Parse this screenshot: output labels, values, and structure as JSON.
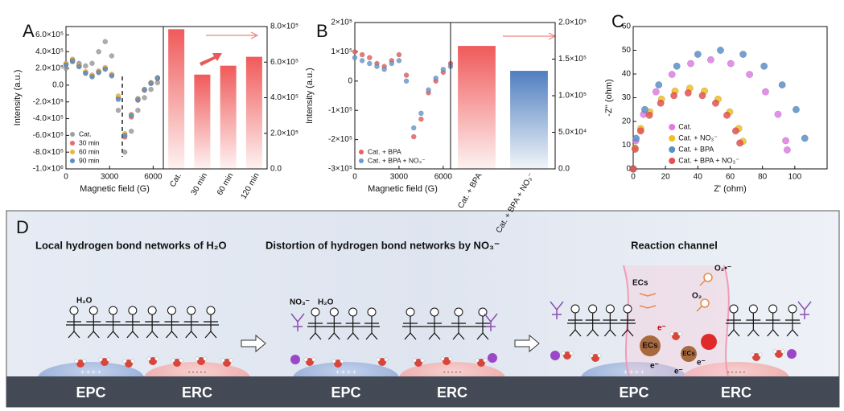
{
  "panel_labels": [
    "A",
    "B",
    "C",
    "D"
  ],
  "chart_data": [
    {
      "type": "scatter",
      "xlabel": "Magnetic field (G)",
      "ylabel": "Intensity (a.u.)",
      "x": [
        0,
        450,
        900,
        1350,
        1800,
        2250,
        2700,
        3150,
        3600,
        4050,
        4500,
        4950,
        5400,
        5850,
        6300
      ],
      "series": [
        {
          "name": "Cat.",
          "color": "#9e9e9e",
          "values": [
            200000,
            280000,
            260000,
            230000,
            260000,
            400000,
            520000,
            350000,
            -300000,
            -800000,
            -550000,
            -300000,
            -150000,
            -50000,
            30000
          ]
        },
        {
          "name": "30 min",
          "color": "#e86a6a",
          "values": [
            250000,
            300000,
            230000,
            150000,
            110000,
            160000,
            200000,
            120000,
            -150000,
            -620000,
            -380000,
            -180000,
            -60000,
            20000,
            80000
          ]
        },
        {
          "name": "60 min",
          "color": "#e8b83a",
          "values": [
            260000,
            310000,
            240000,
            160000,
            120000,
            170000,
            210000,
            130000,
            -130000,
            -580000,
            -350000,
            -160000,
            -50000,
            30000,
            90000
          ]
        },
        {
          "name": "90 min",
          "color": "#5b8ec9",
          "values": [
            240000,
            290000,
            220000,
            140000,
            100000,
            150000,
            190000,
            110000,
            -170000,
            -600000,
            -360000,
            -170000,
            -55000,
            25000,
            85000
          ]
        }
      ],
      "xlim": [
        0,
        6700
      ],
      "xticks": [
        0,
        3000,
        6000
      ],
      "ylim": [
        -1000000,
        700000
      ],
      "yticks": [
        {
          "value": 600000,
          "label": "6.0×10⁵"
        },
        {
          "value": 400000,
          "label": "4.0×10⁵"
        },
        {
          "value": 200000,
          "label": "2.0×10⁵"
        },
        {
          "value": 0,
          "label": "0.0"
        },
        {
          "value": -200000,
          "label": "-2.0×10⁵"
        },
        {
          "value": -400000,
          "label": "-4.0×10⁵"
        },
        {
          "value": -600000,
          "label": "-6.0×10⁵"
        },
        {
          "value": -800000,
          "label": "-8.0×10⁵"
        },
        {
          "value": -1000000,
          "label": "-1.0×10⁶"
        }
      ],
      "legend": "lower left"
    },
    {
      "type": "bar",
      "categories": [
        "Cat.",
        "30 min",
        "60 min",
        "120 min"
      ],
      "values": [
        785000,
        530000,
        580000,
        630000
      ],
      "colors": [
        "#f05a5a",
        "#f05a5a",
        "#f05a5a",
        "#f05a5a"
      ],
      "ylim": [
        0,
        800000
      ],
      "yticks": [
        {
          "value": 0,
          "label": "0.0"
        },
        {
          "value": 200000,
          "label": "2.0×10⁵"
        },
        {
          "value": 400000,
          "label": "4.0×10⁵"
        },
        {
          "value": 600000,
          "label": "6.0×10⁵"
        },
        {
          "value": 800000,
          "label": "8.0×10⁵"
        }
      ],
      "y_axis": "right"
    },
    {
      "type": "scatter",
      "xlabel": "Magnetic field (G)",
      "ylabel": "Intensity (a.u.)",
      "x": [
        0,
        500,
        1000,
        1500,
        2000,
        2500,
        3000,
        3500,
        4000,
        4500,
        5000,
        5500,
        6000,
        6500
      ],
      "series": [
        {
          "name": "Cat. + BPA",
          "color": "#e86060",
          "values": [
            100000,
            90000,
            80000,
            60000,
            50000,
            70000,
            90000,
            20000,
            -190000,
            -130000,
            -40000,
            0,
            30000,
            60000
          ]
        },
        {
          "name": "Cat. + BPA + NO₃⁻",
          "color": "#6a9bd0",
          "values": [
            80000,
            70000,
            60000,
            50000,
            40000,
            60000,
            70000,
            0,
            -160000,
            -110000,
            -30000,
            10000,
            40000,
            50000
          ]
        }
      ],
      "xlim": [
        0,
        6500
      ],
      "xticks": [
        0,
        3000,
        6000
      ],
      "ylim": [
        -300000,
        200000
      ],
      "yticks": [
        {
          "value": 200000,
          "label": "2×10⁵"
        },
        {
          "value": 100000,
          "label": "1×10⁵"
        },
        0,
        {
          "value": -100000,
          "label": "-1×10⁵"
        },
        {
          "value": -200000,
          "label": "-2×10⁵"
        },
        {
          "value": -300000,
          "label": "-3×10⁵"
        }
      ],
      "legend": "lower left"
    },
    {
      "type": "bar",
      "categories": [
        "Cat. + BPA",
        "Cat. + BPA + NO₃⁻"
      ],
      "values": [
        168000,
        134000
      ],
      "colors": [
        "#f05a5a",
        "#4f7fbf"
      ],
      "ylim": [
        0,
        200000
      ],
      "yticks": [
        {
          "value": 0,
          "label": "0.0"
        },
        {
          "value": 50000,
          "label": "5.0×10⁴"
        },
        {
          "value": 100000,
          "label": "1.0×10⁵"
        },
        {
          "value": 150000,
          "label": "1.5×10⁵"
        },
        {
          "value": 200000,
          "label": "2.0×10⁵"
        }
      ],
      "y_axis": "right"
    },
    {
      "type": "scatter",
      "xlabel": "Z' (ohm)",
      "ylabel": "-Z'' (ohm)",
      "series": [
        {
          "name": "Cat.",
          "color": "#e07ae6",
          "x": [
            0,
            1.6,
            6.4,
            14.1,
            24,
            35.6,
            48,
            60.4,
            72,
            81.9,
            89.6,
            94.4,
            95.3
          ],
          "values": [
            0,
            11.9,
            23,
            32.5,
            39.8,
            44.4,
            46,
            44.4,
            39.8,
            32.5,
            23,
            11.9,
            8
          ]
        },
        {
          "name": "Cat. + NO₃⁻",
          "color": "#f0c020",
          "x": [
            0,
            1.2,
            4.7,
            10.3,
            17.5,
            25.9,
            35,
            44.1,
            52.5,
            59.7,
            65.3,
            67.9
          ],
          "values": [
            0,
            8.8,
            17,
            24,
            29.4,
            32.8,
            34,
            32.8,
            29.4,
            24,
            17,
            11.6
          ]
        },
        {
          "name": "Cat. + BPA",
          "color": "#5a8fc8",
          "x": [
            0,
            1.8,
            7.2,
            15.8,
            27,
            40,
            54,
            68,
            81,
            92.2,
            100.8,
            106.2
          ],
          "values": [
            0,
            12.9,
            25,
            35.4,
            43.3,
            48.3,
            50,
            48.3,
            43.3,
            35.4,
            25,
            12.9
          ]
        },
        {
          "name": "Cat. + BPA + NO₃⁻",
          "color": "#e85050",
          "x": [
            0,
            1.2,
            4.6,
            10,
            17,
            25.2,
            34,
            42.8,
            51,
            58,
            63.4,
            66
          ],
          "values": [
            0,
            8.3,
            16,
            22.6,
            27.7,
            30.9,
            32,
            30.9,
            27.7,
            22.6,
            16,
            10.9
          ]
        }
      ],
      "xlim": [
        0,
        120
      ],
      "xticks": [
        0,
        20,
        40,
        60,
        80,
        100
      ],
      "ylim": [
        0,
        60
      ],
      "yticks": [
        0,
        10,
        20,
        30,
        40,
        50,
        60
      ],
      "legend": "lower center"
    }
  ],
  "diagram": {
    "sections": [
      {
        "title": "Local hydrogen bond networks of H₂O",
        "labels": [
          "H₂O"
        ],
        "electrodes": [
          "EPC",
          "ERC"
        ],
        "signs": [
          "+ + + +",
          "- - - - -"
        ]
      },
      {
        "title": "Distortion of hydrogen bond networks by NO₃⁻",
        "labels": [
          "NO₃⁻",
          "H₂O"
        ],
        "electrodes": [
          "EPC",
          "ERC"
        ],
        "signs": [
          "+ + + +",
          "- - - - -"
        ]
      },
      {
        "title": "Reaction channel",
        "labels": [
          "ECs",
          "O₂•⁻",
          "O₂",
          "ECs",
          "ECs",
          "e⁻",
          "e⁻",
          "e⁻",
          "e⁻"
        ],
        "electrodes": [
          "EPC",
          "ERC"
        ],
        "signs": [
          "+ + + +",
          "- - - - -"
        ]
      }
    ]
  }
}
